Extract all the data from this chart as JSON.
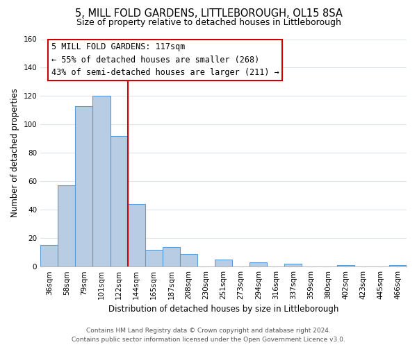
{
  "title": "5, MILL FOLD GARDENS, LITTLEBOROUGH, OL15 8SA",
  "subtitle": "Size of property relative to detached houses in Littleborough",
  "xlabel": "Distribution of detached houses by size in Littleborough",
  "ylabel": "Number of detached properties",
  "categories": [
    "36sqm",
    "58sqm",
    "79sqm",
    "101sqm",
    "122sqm",
    "144sqm",
    "165sqm",
    "187sqm",
    "208sqm",
    "230sqm",
    "251sqm",
    "273sqm",
    "294sqm",
    "316sqm",
    "337sqm",
    "359sqm",
    "380sqm",
    "402sqm",
    "423sqm",
    "445sqm",
    "466sqm"
  ],
  "values": [
    15,
    57,
    113,
    120,
    92,
    44,
    12,
    14,
    9,
    0,
    5,
    0,
    3,
    0,
    2,
    0,
    0,
    1,
    0,
    0,
    1
  ],
  "bar_color": "#b8cce4",
  "bar_edge_color": "#5b9bd5",
  "vline_color": "#cc0000",
  "vline_x": 4.5,
  "annotation_title": "5 MILL FOLD GARDENS: 117sqm",
  "annotation_line1": "← 55% of detached houses are smaller (268)",
  "annotation_line2": "43% of semi-detached houses are larger (211) →",
  "annotation_box_color": "#ffffff",
  "annotation_box_edgecolor": "#cc0000",
  "ylim": [
    0,
    160
  ],
  "yticks": [
    0,
    20,
    40,
    60,
    80,
    100,
    120,
    140,
    160
  ],
  "footer1": "Contains HM Land Registry data © Crown copyright and database right 2024.",
  "footer2": "Contains public sector information licensed under the Open Government Licence v3.0.",
  "background_color": "#ffffff",
  "grid_color": "#dce6f1",
  "title_fontsize": 10.5,
  "subtitle_fontsize": 9,
  "ylabel_fontsize": 8.5,
  "xlabel_fontsize": 8.5,
  "tick_fontsize": 7.5,
  "annotation_fontsize": 8.5,
  "footer_fontsize": 6.5
}
